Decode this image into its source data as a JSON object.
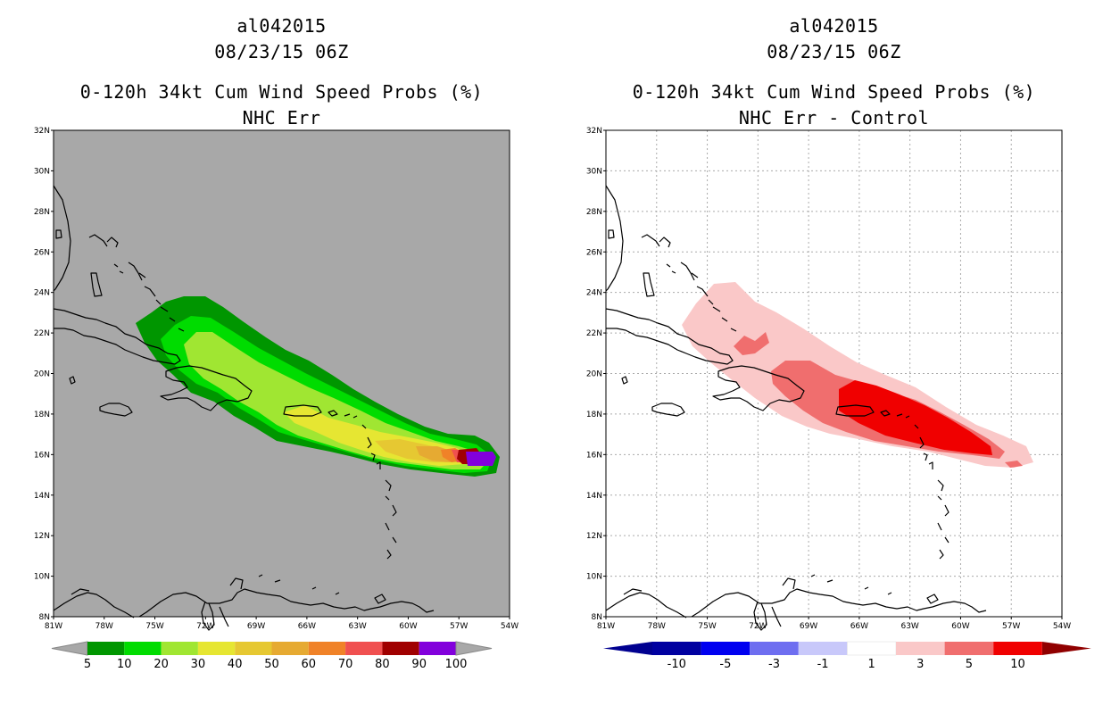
{
  "left_panel": {
    "title_line1": "al042015",
    "title_line2": "08/23/15 06Z",
    "title_line3": "0-120h 34kt Cum Wind Speed Probs (%)",
    "title_line4": "NHC Err",
    "background_color": "#a8a8a8",
    "colorbar": {
      "labels": [
        "5",
        "10",
        "20",
        "30",
        "40",
        "50",
        "60",
        "70",
        "80",
        "90",
        "100"
      ],
      "colors": [
        "#009600",
        "#00dc00",
        "#a0e632",
        "#e6e632",
        "#e6c832",
        "#e6aa32",
        "#f08228",
        "#f05050",
        "#a00000",
        "#8200dc"
      ],
      "arrow_color": "#a8a8a8"
    }
  },
  "right_panel": {
    "title_line1": "al042015",
    "title_line2": "08/23/15 06Z",
    "title_line3": "0-120h 34kt Cum Wind Speed Probs (%)",
    "title_line4": "NHC Err - Control",
    "background_color": "#ffffff",
    "colorbar": {
      "labels": [
        "-10",
        "-5",
        "-3",
        "-1",
        "1",
        "3",
        "5",
        "10"
      ],
      "colors": [
        "#0000a0",
        "#0000f0",
        "#6e6ef0",
        "#c8c8fa",
        "#ffffff",
        "#fac8c8",
        "#f06e6e",
        "#f00000"
      ],
      "arrow_low": "#000090",
      "arrow_high": "#900000"
    }
  },
  "axes": {
    "lat_labels": [
      "32N",
      "30N",
      "28N",
      "26N",
      "24N",
      "22N",
      "20N",
      "18N",
      "16N",
      "14N",
      "12N",
      "10N",
      "8N"
    ],
    "lon_labels": [
      "81W",
      "78W",
      "75W",
      "72W",
      "69W",
      "66W",
      "63W",
      "60W",
      "57W",
      "54W"
    ]
  }
}
